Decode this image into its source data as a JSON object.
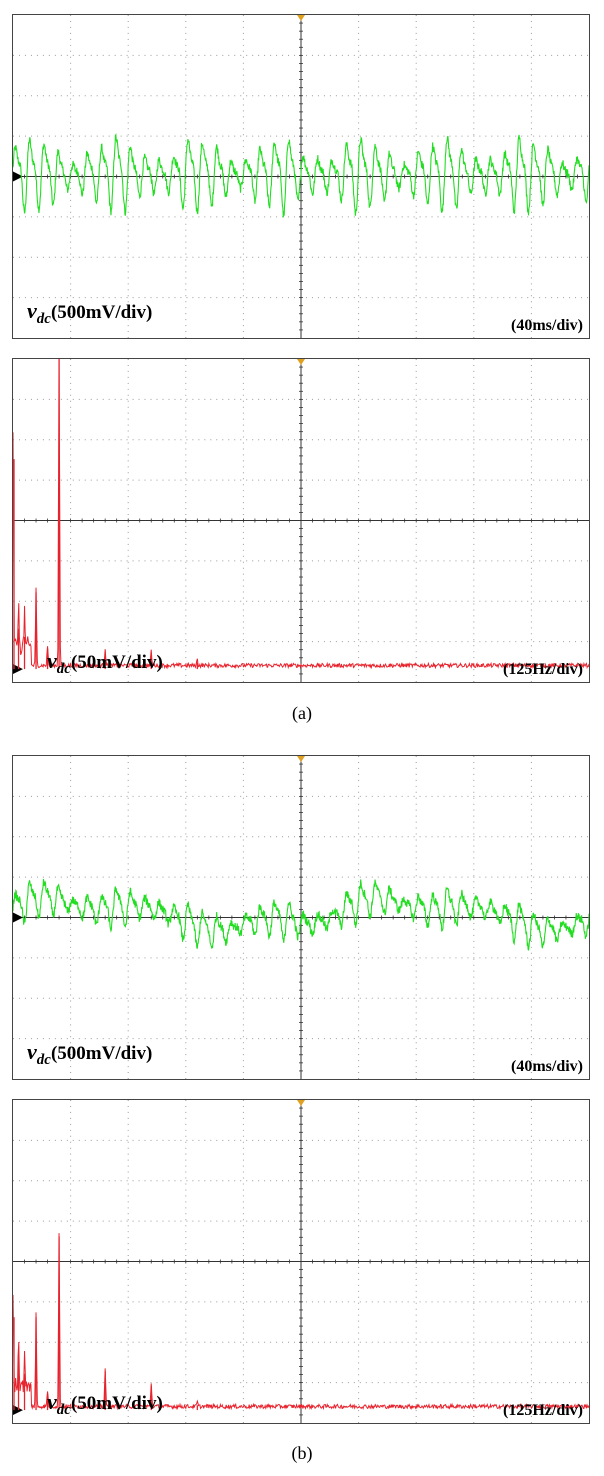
{
  "figure": {
    "caption_a": "(a)",
    "caption_b": "(b)"
  },
  "colors": {
    "time_trace": "#22dd22",
    "fft_trace": "#e8232d",
    "axis": "#333333",
    "grid_dots": "#9a9a9a",
    "trigger_marker": "#e0a020"
  },
  "chart_data": [
    {
      "id": "a_time",
      "type": "line",
      "subplot": "(a)",
      "ylabel_var": "v",
      "ylabel_sub": "dc",
      "ylabel_unit": "(500mV/div)",
      "xlabel": "(40ms/div)",
      "divisions": {
        "x": 10,
        "y": 8
      },
      "xlim": [
        0,
        400
      ],
      "ylim": [
        -2000,
        2000
      ],
      "grid": true,
      "series": [
        {
          "color": "#22dd22",
          "ripple_period_ms": 10,
          "amplitude_mV": 420,
          "mean_mV": 50
        }
      ]
    },
    {
      "id": "a_fft",
      "type": "line",
      "subplot": "(a)",
      "ylabel_var": "v",
      "ylabel_sub": "dc",
      "ylabel_unit": "(50mV/div)",
      "xlabel": "(125Hz/div)",
      "divisions": {
        "x": 10,
        "y": 8
      },
      "xlim": [
        0,
        1250
      ],
      "ylim": [
        0,
        400
      ],
      "grid": true,
      "peaks": [
        {
          "freq_Hz": 0,
          "mag_mV": 260
        },
        {
          "freq_Hz": 12,
          "mag_mV": 50
        },
        {
          "freq_Hz": 25,
          "mag_mV": 40
        },
        {
          "freq_Hz": 50,
          "mag_mV": 95
        },
        {
          "freq_Hz": 75,
          "mag_mV": 25
        },
        {
          "freq_Hz": 100,
          "mag_mV": 420
        },
        {
          "freq_Hz": 200,
          "mag_mV": 22
        },
        {
          "freq_Hz": 300,
          "mag_mV": 18
        },
        {
          "freq_Hz": 400,
          "mag_mV": 8
        }
      ]
    },
    {
      "id": "b_time",
      "type": "line",
      "subplot": "(b)",
      "ylabel_var": "v",
      "ylabel_sub": "dc",
      "ylabel_unit": "(500mV/div)",
      "xlabel": "(40ms/div)",
      "divisions": {
        "x": 10,
        "y": 8
      },
      "xlim": [
        0,
        400
      ],
      "ylim": [
        -2000,
        2000
      ],
      "grid": true,
      "series": [
        {
          "color": "#22dd22",
          "ripple_period_ms": 10,
          "amplitude_mV": 220,
          "mean_mV": 50,
          "slow_wander_mV": 150
        }
      ]
    },
    {
      "id": "b_fft",
      "type": "line",
      "subplot": "(b)",
      "ylabel_var": "v",
      "ylabel_sub": "dc",
      "ylabel_unit": "(50mV/div)",
      "xlabel": "(125Hz/div)",
      "divisions": {
        "x": 10,
        "y": 8
      },
      "xlim": [
        0,
        1250
      ],
      "ylim": [
        0,
        400
      ],
      "grid": true,
      "peaks": [
        {
          "freq_Hz": 0,
          "mag_mV": 115
        },
        {
          "freq_Hz": 12,
          "mag_mV": 65
        },
        {
          "freq_Hz": 25,
          "mag_mV": 45
        },
        {
          "freq_Hz": 50,
          "mag_mV": 115
        },
        {
          "freq_Hz": 75,
          "mag_mV": 20
        },
        {
          "freq_Hz": 100,
          "mag_mV": 215
        },
        {
          "freq_Hz": 200,
          "mag_mV": 48
        },
        {
          "freq_Hz": 300,
          "mag_mV": 30
        },
        {
          "freq_Hz": 400,
          "mag_mV": 6
        }
      ]
    }
  ]
}
